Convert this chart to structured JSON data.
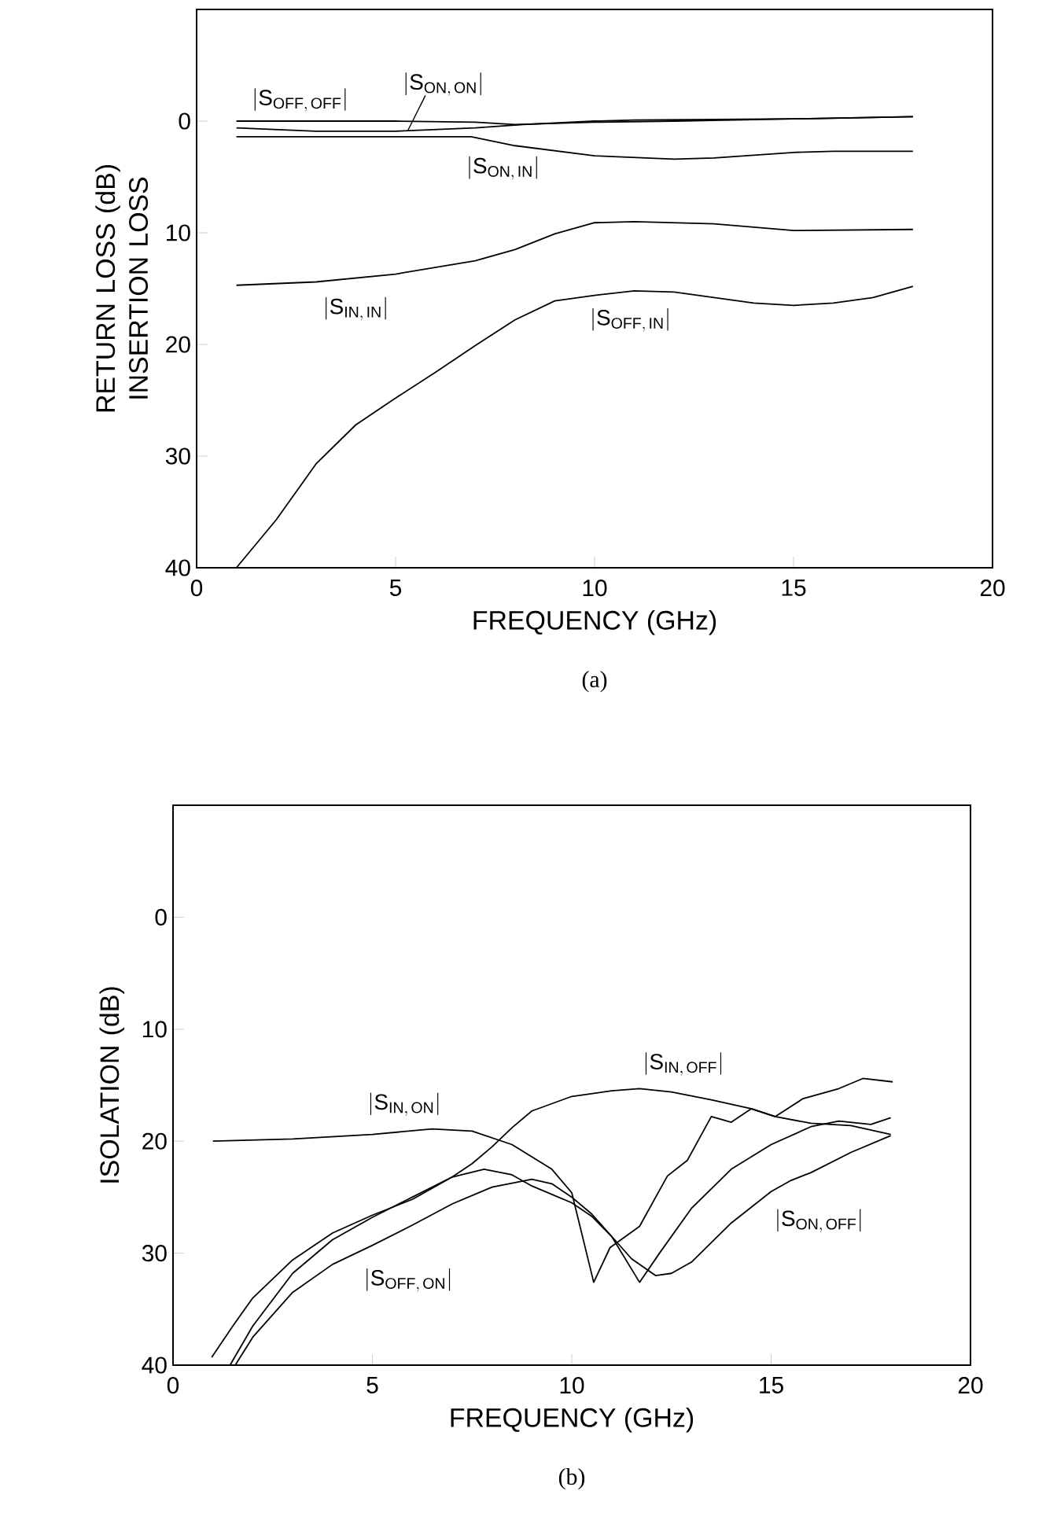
{
  "chart_data": [
    {
      "type": "line",
      "xlabel": "FREQUENCY (GHz)",
      "ylabel": "RETURN LOSS (dB) INSERTION LOSS",
      "xlim": [
        0,
        20
      ],
      "ylim": [
        40,
        -10
      ],
      "xticks": [
        0,
        5,
        10,
        15,
        20
      ],
      "yticks": [
        0,
        10,
        20,
        30,
        40
      ],
      "series": [
        {
          "name": "|\\mathrm{S}_{\\mathrm{OFF,\\,OFF}}|",
          "color": "#000000",
          "x": [
            1,
            3,
            5,
            7,
            8,
            10,
            12,
            15,
            18
          ],
          "values": [
            0,
            0,
            0,
            0.1,
            0.3,
            0.1,
            0,
            -0.2,
            -0.4
          ]
        },
        {
          "name": "|\\mathrm{S}_{\\mathrm{ON,\\,ON}}|",
          "color": "#000000",
          "x": [
            1,
            3,
            5,
            7,
            8.2,
            10,
            11,
            15,
            18
          ],
          "values": [
            0.6,
            0.9,
            0.9,
            0.6,
            0.3,
            0,
            -0.1,
            -0.2,
            -0.4
          ]
        },
        {
          "name": "|\\mathrm{S}_{\\mathrm{ON,\\,IN}}|",
          "color": "#000000",
          "x": [
            1,
            4,
            6.9,
            8,
            10,
            12,
            13,
            15,
            16,
            18
          ],
          "values": [
            1.4,
            1.4,
            1.4,
            2.2,
            3.1,
            3.4,
            3.3,
            2.8,
            2.7,
            2.7
          ]
        },
        {
          "name": "|\\mathrm{S}_{\\mathrm{IN,\\,IN}}|",
          "color": "#000000",
          "x": [
            1,
            3,
            5,
            7,
            8,
            9,
            10,
            11,
            13,
            15,
            18
          ],
          "values": [
            14.7,
            14.4,
            13.7,
            12.5,
            11.5,
            10.1,
            9.1,
            9.0,
            9.2,
            9.8,
            9.7
          ]
        },
        {
          "name": "|\\mathrm{S}_{\\mathrm{OFF,\\,IN}}|",
          "color": "#000000",
          "x": [
            1,
            2,
            3,
            4,
            5,
            6,
            7,
            8,
            9,
            10,
            11,
            12,
            13,
            14,
            15,
            16,
            17,
            18
          ],
          "values": [
            40,
            35.7,
            30.7,
            27.2,
            24.8,
            22.5,
            20.1,
            17.8,
            16.1,
            15.6,
            15.2,
            15.3,
            15.8,
            16.3,
            16.5,
            16.3,
            15.8,
            14.8
          ]
        }
      ],
      "annotations": [
        "(a)"
      ]
    },
    {
      "type": "line",
      "xlabel": "FREQUENCY (GHz)",
      "ylabel": "ISOLATION (dB)",
      "xlim": [
        0,
        20
      ],
      "ylim": [
        40,
        -10
      ],
      "xticks": [
        0,
        5,
        10,
        15,
        20
      ],
      "yticks": [
        0,
        10,
        20,
        30,
        40
      ],
      "series": [
        {
          "name": "|\\mathrm{S}_{\\mathrm{IN,\\,ON}}|",
          "color": "#000000",
          "x": [
            1,
            3,
            5,
            6.5,
            7.5,
            8.5,
            9.5,
            10,
            10.55,
            10.96,
            11.7,
            12.4,
            12.9,
            13.5,
            14,
            14.5,
            15.1,
            15.8,
            16.7,
            17.3,
            18.05
          ],
          "values": [
            20.0,
            19.8,
            19.4,
            18.9,
            19.1,
            20.3,
            22.5,
            24.6,
            32.6,
            29.5,
            27.6,
            23.1,
            21.7,
            17.8,
            18.3,
            17.1,
            17.8,
            16.2,
            15.3,
            14.4,
            14.7
          ]
        },
        {
          "name": "|\\mathrm{S}_{\\mathrm{IN,\\,OFF}}|",
          "color": "#000000",
          "x": [
            0.97,
            1.5,
            2,
            3,
            4,
            5,
            6,
            7,
            7.5,
            8,
            8.5,
            9,
            10,
            11,
            11.7,
            12.5,
            13.5,
            14.5,
            15.1,
            16,
            17,
            18
          ],
          "values": [
            39.3,
            36.5,
            34,
            30.6,
            28.2,
            26.6,
            25.2,
            23.2,
            22,
            20.5,
            18.8,
            17.3,
            16,
            15.5,
            15.3,
            15.6,
            16.3,
            17.1,
            17.8,
            18.4,
            18.6,
            19.4
          ]
        },
        {
          "name": "|\\mathrm{S}_{\\mathrm{ON,\\,OFF}}|",
          "color": "#000000",
          "x": [
            1.43,
            2,
            3,
            4,
            5,
            6,
            7,
            7.8,
            8.5,
            9,
            10,
            10.5,
            11,
            11.5,
            12.1,
            12.5,
            13,
            14,
            15,
            15.5,
            16,
            17,
            18
          ],
          "values": [
            40,
            36.5,
            31.8,
            28.8,
            26.8,
            25,
            23.2,
            22.5,
            23,
            24,
            25.5,
            26.7,
            28.5,
            30.5,
            32,
            31.8,
            30.8,
            27.3,
            24.5,
            23.5,
            22.8,
            21,
            19.5
          ]
        },
        {
          "name": "|\\mathrm{S}_{\\mathrm{OFF,\\,ON}}|",
          "color": "#000000",
          "x": [
            1.56,
            2,
            3,
            4,
            5,
            6,
            7,
            8,
            9,
            9.5,
            10,
            10.5,
            11,
            11.7,
            12.2,
            13,
            14,
            15,
            16,
            16.7,
            17.5,
            18
          ],
          "values": [
            40,
            37.5,
            33.5,
            31,
            29.3,
            27.5,
            25.6,
            24.1,
            23.4,
            23.8,
            25,
            26.5,
            28.5,
            32.6,
            30,
            26,
            22.5,
            20.3,
            18.7,
            18.2,
            18.5,
            17.9
          ]
        }
      ],
      "annotations": [
        "(b)"
      ]
    }
  ]
}
